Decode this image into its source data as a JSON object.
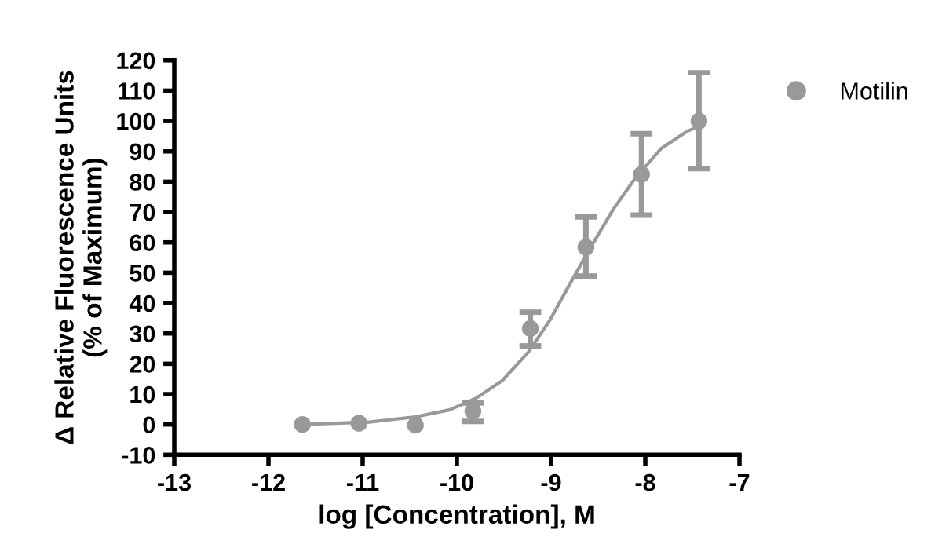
{
  "chart_data": {
    "type": "scatter",
    "xlabel": "log [Concentration], M",
    "ylabel": "Δ Relative Fluorescence Units\n(% of Maximum)",
    "xlim": [
      -13,
      -7
    ],
    "xticks": [
      -13,
      -12,
      -11,
      -10,
      -9,
      -8,
      -7
    ],
    "ylim": [
      -10,
      120
    ],
    "yticks": [
      -10,
      0,
      10,
      20,
      30,
      40,
      50,
      60,
      70,
      80,
      90,
      100,
      110,
      120
    ],
    "grid": false,
    "legend": "top right",
    "series": [
      {
        "name": "Motilin",
        "marker": "circle",
        "color": "#999999",
        "x": [
          -11.64,
          -11.04,
          -10.44,
          -9.83,
          -9.22,
          -8.63,
          -8.04,
          -7.43
        ],
        "values": [
          0,
          0.4,
          -0.2,
          4.4,
          31.6,
          58.4,
          82.4,
          100
        ],
        "errors": [
          null,
          null,
          null,
          [
            1,
            7.1
          ],
          [
            25.9,
            37
          ],
          [
            48.9,
            68.4
          ],
          [
            69,
            95.8
          ],
          [
            84.3,
            115.9
          ]
        ]
      },
      {
        "type": "line",
        "color": "#999999",
        "line_style": "solid",
        "x": [
          -11.64,
          -10.93,
          -10.44,
          -10.08,
          -9.8,
          -9.52,
          -9.24,
          -9.01,
          -8.79,
          -8.56,
          -8.34,
          -8.11,
          -7.83,
          -7.55,
          -7.43
        ],
        "values": [
          0,
          0.8,
          2.5,
          4.8,
          8.6,
          14.4,
          23.9,
          34.5,
          46.9,
          59.4,
          70.9,
          81,
          91,
          96.7,
          98.3
        ]
      }
    ]
  }
}
